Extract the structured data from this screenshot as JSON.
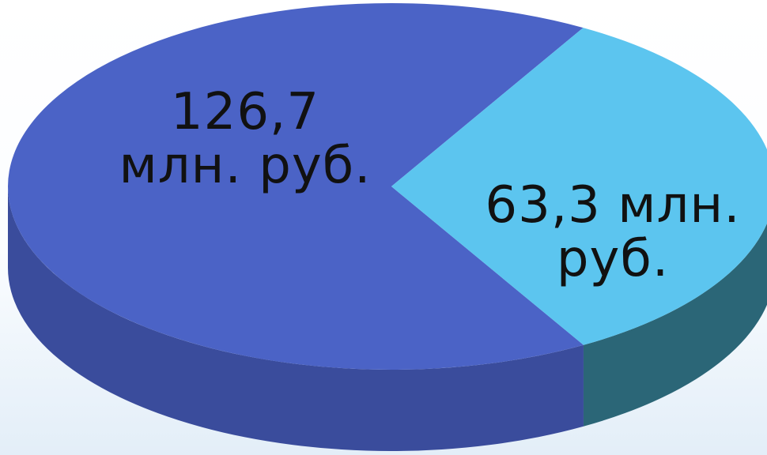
{
  "chart_data": {
    "type": "pie",
    "variant": "3d",
    "title": "",
    "slices": [
      {
        "value": 126.7,
        "label_lines": [
          "126,7",
          "млн. руб."
        ],
        "color": "#4b63c6",
        "side_color": "#3a4c9c"
      },
      {
        "value": 63.3,
        "label_lines": [
          "63,3 млн.",
          "руб."
        ],
        "color": "#5cc5ef",
        "side_color": "#2b6677"
      }
    ],
    "legend": "none"
  }
}
